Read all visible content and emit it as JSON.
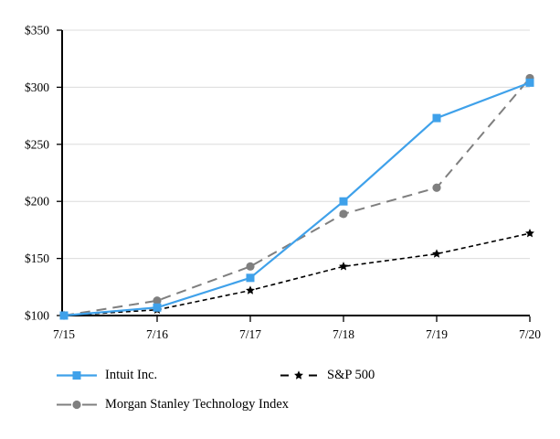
{
  "chart_data": {
    "type": "line",
    "title": "",
    "xlabel": "",
    "ylabel": "",
    "x": [
      "7/15",
      "7/16",
      "7/17",
      "7/18",
      "7/19",
      "7/20"
    ],
    "series": [
      {
        "name": "Intuit Inc.",
        "values": [
          100,
          107,
          133,
          200,
          273,
          304
        ],
        "color": "#3FA1EA",
        "marker": "square",
        "line_style": "solid"
      },
      {
        "name": "S&P 500",
        "values": [
          100,
          105,
          122,
          143,
          154,
          172
        ],
        "color": "#000000",
        "marker": "star",
        "line_style": "dashed-short"
      },
      {
        "name": "Morgan Stanley Technology Index",
        "values": [
          100,
          113,
          143,
          189,
          212,
          308
        ],
        "color": "#7F7F7F",
        "marker": "circle",
        "line_style": "dashed-long"
      }
    ],
    "ylim": [
      100,
      350
    ],
    "yticks": [
      100,
      150,
      200,
      250,
      300,
      350
    ],
    "ytick_labels": [
      "$100",
      "$150",
      "$200",
      "$250",
      "$300",
      "$350"
    ],
    "grid": true,
    "gridline_color": "#DCDCDC",
    "axis_color": "#000000",
    "legend_position": "bottom-left-two-rows"
  }
}
